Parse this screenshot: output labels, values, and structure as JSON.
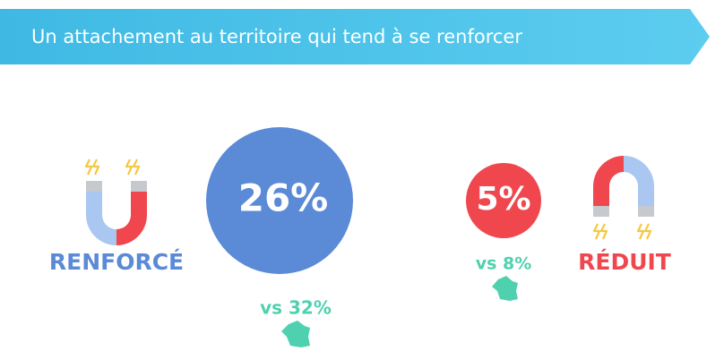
{
  "header": {
    "title": "Un attachement au territoire qui tend à se renforcer"
  },
  "left": {
    "label": "RENFORCÉ",
    "value": "26%",
    "comparison": "vs 32%"
  },
  "right": {
    "value": "5%",
    "comparison": "vs 8%",
    "label": "RÉDUIT"
  }
}
